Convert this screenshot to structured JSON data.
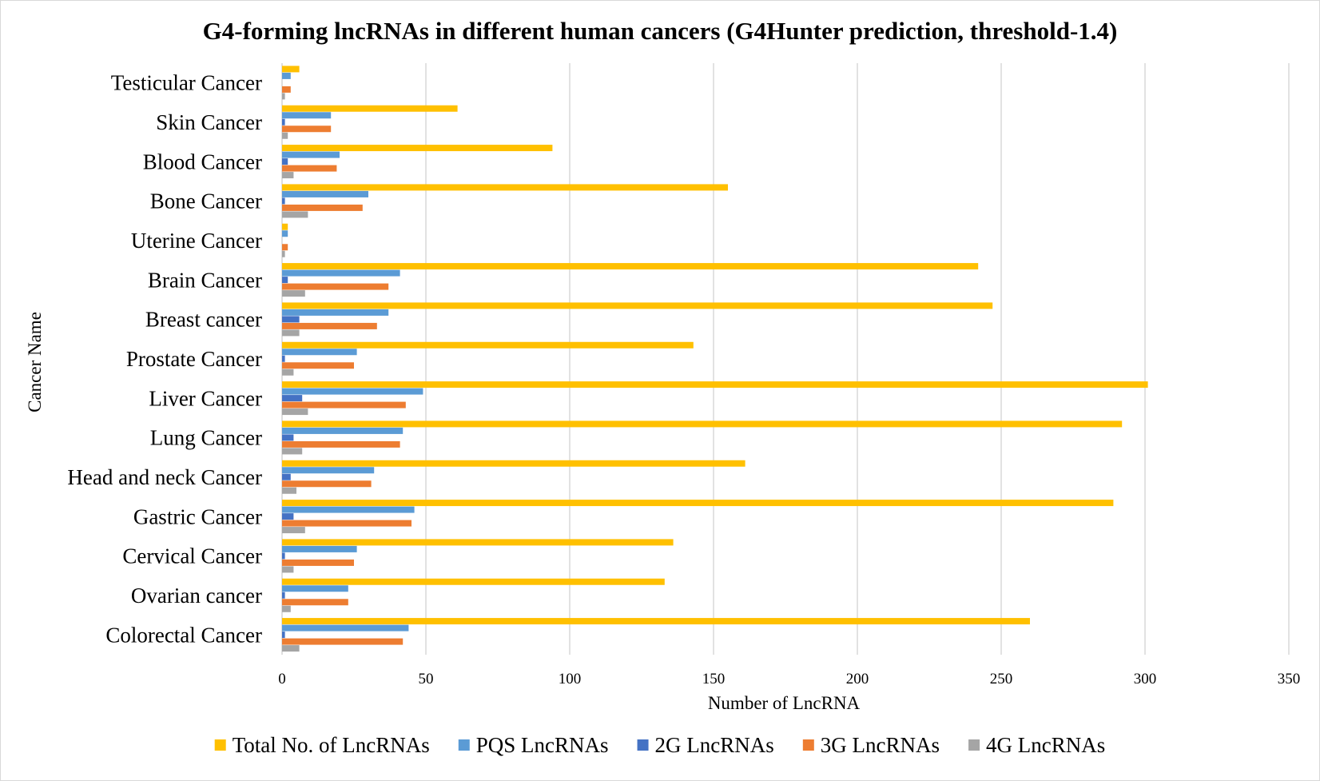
{
  "chart_data": {
    "type": "bar",
    "orientation": "horizontal",
    "title": "G4-forming lncRNAs in different human cancers (G4Hunter prediction, threshold-1.4)",
    "xlabel": "Number of LncRNA",
    "ylabel": "Cancer Name",
    "xlim": [
      0,
      350
    ],
    "xticks": [
      0,
      50,
      100,
      150,
      200,
      250,
      300,
      350
    ],
    "grid": "vertical",
    "legend_position": "bottom",
    "categories": [
      "Testicular Cancer",
      "Skin Cancer",
      "Blood Cancer",
      "Bone Cancer",
      "Uterine Cancer",
      "Brain Cancer",
      "Breast cancer",
      "Prostate Cancer",
      "Liver Cancer",
      "Lung Cancer",
      "Head and neck Cancer",
      "Gastric Cancer",
      "Cervical Cancer",
      "Ovarian cancer",
      "Colorectal Cancer"
    ],
    "series": [
      {
        "name": "Total No. of LncRNAs",
        "color": "#FFC000",
        "values": [
          6,
          61,
          94,
          155,
          2,
          242,
          247,
          143,
          301,
          292,
          161,
          289,
          136,
          133,
          260
        ]
      },
      {
        "name": "PQS LncRNAs",
        "color": "#5B9BD5",
        "values": [
          3,
          17,
          20,
          30,
          2,
          41,
          37,
          26,
          49,
          42,
          32,
          46,
          26,
          23,
          44
        ]
      },
      {
        "name": "2G LncRNAs",
        "color": "#4472C4",
        "values": [
          0,
          1,
          2,
          1,
          0,
          2,
          6,
          1,
          7,
          4,
          3,
          4,
          1,
          1,
          1
        ]
      },
      {
        "name": "3G LncRNAs",
        "color": "#ED7D31",
        "values": [
          3,
          17,
          19,
          28,
          2,
          37,
          33,
          25,
          43,
          41,
          31,
          45,
          25,
          23,
          42
        ]
      },
      {
        "name": "4G LncRNAs",
        "color": "#A5A5A5",
        "values": [
          1,
          2,
          4,
          9,
          1,
          8,
          6,
          4,
          9,
          7,
          5,
          8,
          4,
          3,
          6
        ]
      }
    ]
  }
}
